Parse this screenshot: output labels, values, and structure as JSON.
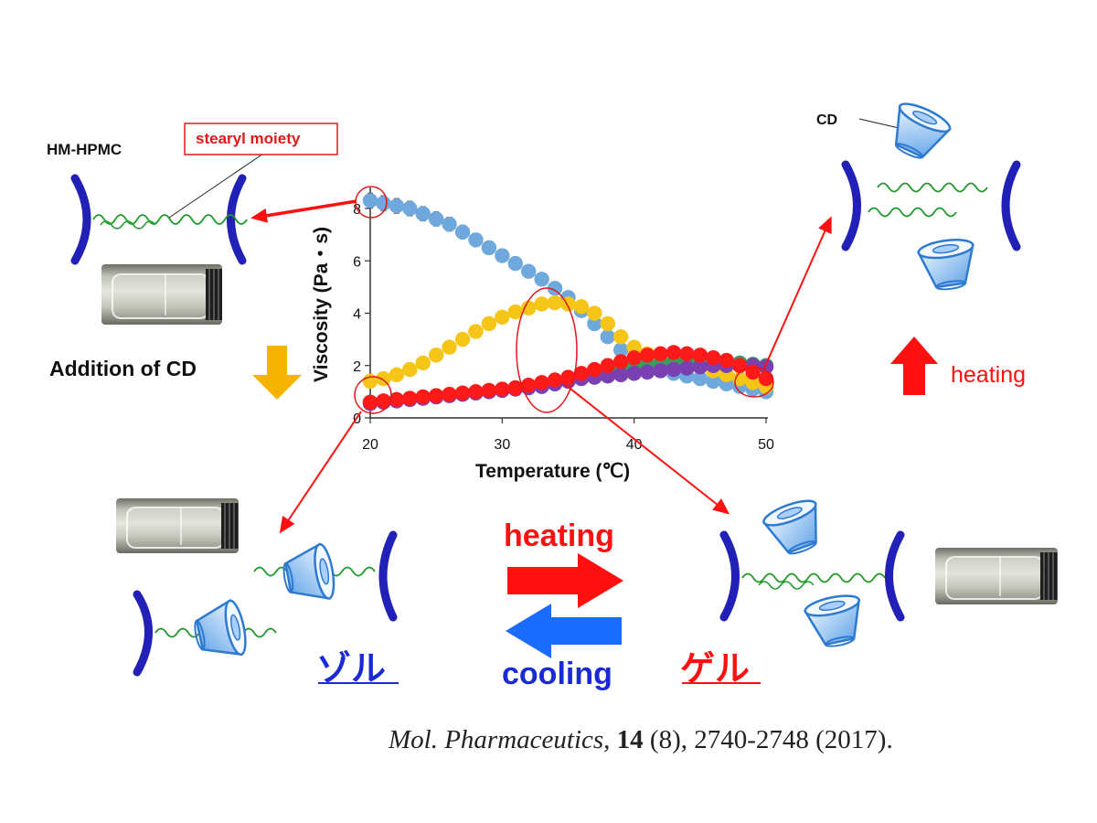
{
  "labels": {
    "hm_hpmc": "HM-HPMC",
    "stearyl": "stearyl moiety",
    "cd": "CD",
    "addition": "Addition of CD",
    "heating_right": "heating",
    "heating_center": "heating",
    "cooling_center": "cooling",
    "sol": "ゾル",
    "gel": "ゲル"
  },
  "citation": {
    "journal": "Mol. Pharmaceutics,",
    "volume": "14",
    "rest": "(8), 2740-2748 (2017)."
  },
  "colors": {
    "arrow_red": "#ff1010",
    "arrow_blue": "#1a6cff",
    "down_arrow": "#f5b400",
    "polymer": "#2121b8",
    "chain": "#1e9a2a",
    "cd": "#5aa0e6"
  },
  "chart_data": {
    "type": "scatter",
    "xlabel": "Temperature (℃)",
    "ylabel": "Viscosity (Pa・s)",
    "xlim": [
      20,
      50
    ],
    "ylim": [
      0,
      8
    ],
    "xticks": [
      20,
      30,
      40,
      50
    ],
    "yticks": [
      0,
      2,
      4,
      6,
      8
    ],
    "grid": false,
    "legend": "none",
    "x": [
      20,
      21,
      22,
      23,
      24,
      25,
      26,
      27,
      28,
      29,
      30,
      31,
      32,
      33,
      34,
      35,
      36,
      37,
      38,
      39,
      40,
      41,
      42,
      43,
      44,
      45,
      46,
      47,
      48,
      49,
      50
    ],
    "series": [
      {
        "color": "#6fa8dc",
        "error_bars": true,
        "values": [
          8.3,
          8.2,
          8.1,
          8.0,
          7.8,
          7.6,
          7.4,
          7.1,
          6.8,
          6.5,
          6.2,
          5.9,
          5.6,
          5.3,
          4.95,
          4.6,
          4.1,
          3.6,
          3.1,
          2.6,
          2.2,
          1.95,
          1.8,
          1.7,
          1.6,
          1.5,
          1.4,
          1.3,
          1.2,
          1.1,
          1.0
        ]
      },
      {
        "color": "#f5c518",
        "error_bars": true,
        "values": [
          1.4,
          1.5,
          1.65,
          1.85,
          2.1,
          2.4,
          2.7,
          3.0,
          3.3,
          3.6,
          3.85,
          4.05,
          4.2,
          4.35,
          4.4,
          4.35,
          4.25,
          4.0,
          3.6,
          3.1,
          2.7,
          2.45,
          2.3,
          2.2,
          2.1,
          1.95,
          1.8,
          1.65,
          1.5,
          1.35,
          1.2
        ]
      },
      {
        "color": "#3c9a5f",
        "error_bars": false,
        "values": [
          0.6,
          0.65,
          0.7,
          0.75,
          0.8,
          0.85,
          0.9,
          0.95,
          1.0,
          1.05,
          1.1,
          1.15,
          1.2,
          1.3,
          1.4,
          1.5,
          1.6,
          1.7,
          1.8,
          1.9,
          2.0,
          2.05,
          2.1,
          2.15,
          2.2,
          2.2,
          2.2,
          2.15,
          2.1,
          2.05,
          2.0
        ]
      },
      {
        "color": "#7a3fb0",
        "error_bars": false,
        "values": [
          0.55,
          0.6,
          0.65,
          0.7,
          0.75,
          0.8,
          0.85,
          0.9,
          0.95,
          1.0,
          1.05,
          1.1,
          1.15,
          1.2,
          1.3,
          1.4,
          1.5,
          1.55,
          1.6,
          1.65,
          1.7,
          1.75,
          1.8,
          1.85,
          1.9,
          1.95,
          2.0,
          2.0,
          2.0,
          2.0,
          1.95
        ]
      },
      {
        "color": "#ff1a1a",
        "error_bars": false,
        "values": [
          0.6,
          0.65,
          0.7,
          0.75,
          0.8,
          0.85,
          0.9,
          0.95,
          1.0,
          1.05,
          1.1,
          1.15,
          1.25,
          1.35,
          1.45,
          1.55,
          1.7,
          1.85,
          2.0,
          2.15,
          2.3,
          2.4,
          2.45,
          2.5,
          2.45,
          2.4,
          2.3,
          2.2,
          2.0,
          1.75,
          1.5
        ]
      }
    ]
  }
}
